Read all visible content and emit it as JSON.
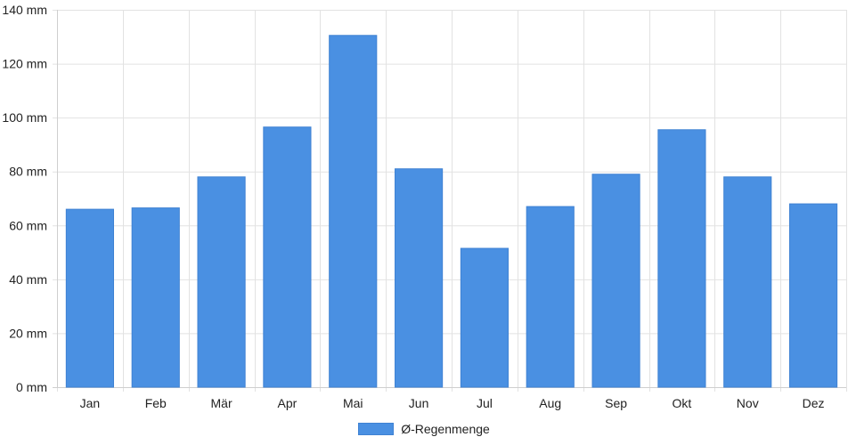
{
  "chart_data": {
    "type": "bar",
    "categories": [
      "Jan",
      "Feb",
      "Mär",
      "Apr",
      "Mai",
      "Jun",
      "Jul",
      "Aug",
      "Sep",
      "Okt",
      "Nov",
      "Dez"
    ],
    "series": [
      {
        "name": "Ø-Regenmenge",
        "values": [
          66,
          66.5,
          78,
          96.5,
          130.5,
          81,
          51.5,
          67,
          79,
          95.5,
          78,
          68
        ],
        "color": "#4a90e2"
      }
    ],
    "ylim": [
      0,
      140
    ],
    "yticks": [
      {
        "value": 0,
        "label": "0 mm"
      },
      {
        "value": 20,
        "label": "20 mm"
      },
      {
        "value": 40,
        "label": "40 mm"
      },
      {
        "value": 60,
        "label": "60 mm"
      },
      {
        "value": 80,
        "label": "80 mm"
      },
      {
        "value": 100,
        "label": "100 mm"
      },
      {
        "value": 120,
        "label": "120 mm"
      },
      {
        "value": 140,
        "label": "140 mm"
      }
    ],
    "grid": true,
    "legend_position": "bottom"
  }
}
